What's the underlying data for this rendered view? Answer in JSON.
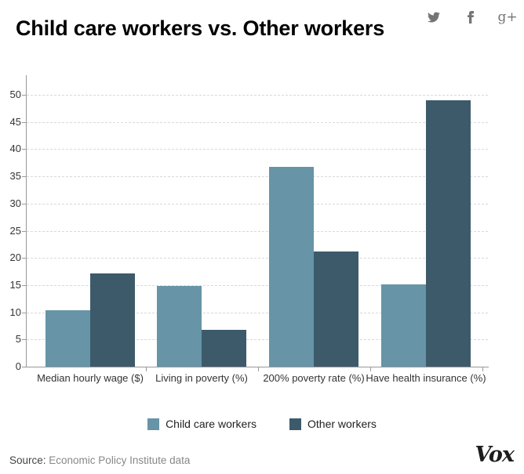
{
  "header": {
    "title": "Child care workers vs. Other workers",
    "social_icons": [
      "twitter-icon",
      "facebook-icon",
      "google-plus-icon"
    ],
    "google_plus_glyph": "g+"
  },
  "chart_data": {
    "type": "bar",
    "title": "Child care workers vs. Other workers",
    "categories": [
      "Median hourly wage ($)",
      "Living in poverty (%)",
      "200% poverty rate (%)",
      "Have health insurance (%)"
    ],
    "series": [
      {
        "name": "Child care workers",
        "color": "#6794a7",
        "values": [
          10.4,
          14.9,
          36.8,
          15.1
        ]
      },
      {
        "name": "Other workers",
        "color": "#3d5a6b",
        "values": [
          17.1,
          6.8,
          21.2,
          49.0
        ]
      }
    ],
    "ylim": [
      0,
      50
    ],
    "yticks": [
      0,
      5,
      10,
      15,
      20,
      25,
      30,
      35,
      40,
      45,
      50
    ],
    "grid": "horizontal-dashed",
    "gridline_color": "#d9d9d9",
    "axis_color": "#999999",
    "legend_position": "bottom"
  },
  "footer": {
    "source_label": "Source:",
    "source_text": " Economic Policy Institute data",
    "brand": "Vox"
  }
}
